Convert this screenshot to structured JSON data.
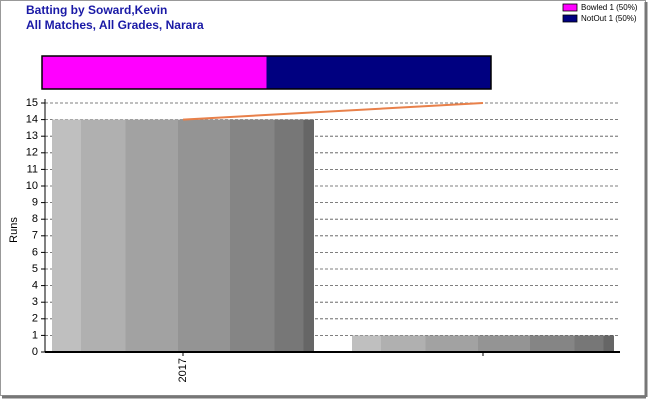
{
  "chart_data": [
    {
      "type": "stacked-bar",
      "series": [
        {
          "name": "Bowled 1 (50%)",
          "color": "#ff00ff",
          "values": [
            1
          ]
        },
        {
          "name": "NotOut 1 (50%)",
          "color": "#000080",
          "values": [
            1
          ]
        }
      ]
    },
    {
      "type": "bar",
      "title": "Batting by Soward,Kevin",
      "subtitle": "All Matches, All Grades, Narara",
      "y_label": "Runs",
      "categories": [
        "2017",
        null
      ],
      "values": [
        14,
        1
      ],
      "line": {
        "color": "#e8804a",
        "values": [
          14,
          15
        ]
      },
      "ylim": [
        0,
        15
      ],
      "yticks": [
        0,
        1,
        2,
        3,
        4,
        5,
        6,
        7,
        8,
        9,
        10,
        11,
        12,
        13,
        14,
        15
      ],
      "grid": true
    }
  ]
}
